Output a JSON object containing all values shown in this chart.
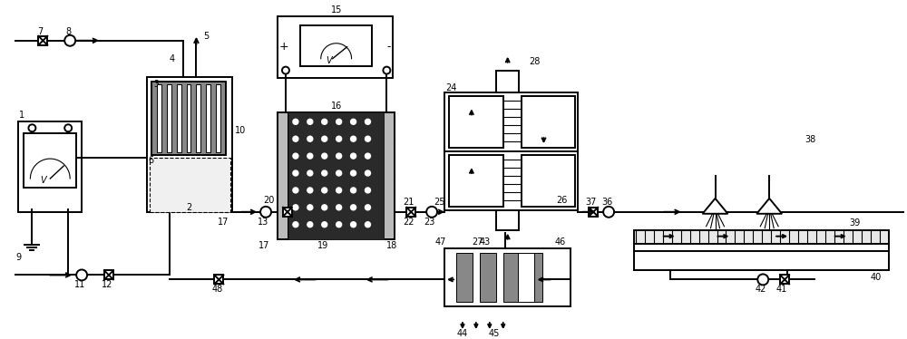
{
  "bg_color": "#ffffff",
  "line_color": "#000000",
  "fig_width": 10.0,
  "fig_height": 3.74
}
